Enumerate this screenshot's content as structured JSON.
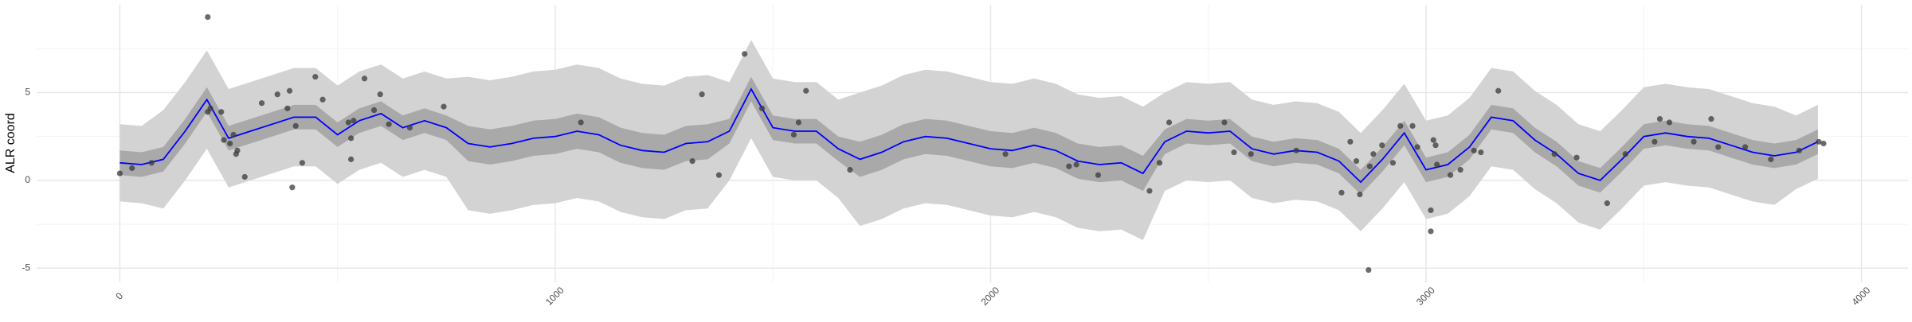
{
  "chart_data": {
    "type": "gp_fit",
    "y_label": "ALR coord",
    "xlim": [
      -191,
      4107
    ],
    "ylim": [
      -5.8,
      10
    ],
    "xticks": [
      0,
      1000,
      2000,
      3000,
      4000
    ],
    "yticks": [
      -5,
      0,
      5
    ],
    "xminor": [
      500,
      1500,
      2500,
      3500
    ],
    "yminor": [
      -2.5,
      2.5,
      7.5
    ],
    "grid": true,
    "x": [
      0,
      50,
      100,
      150,
      200,
      250,
      300,
      350,
      400,
      450,
      500,
      550,
      600,
      650,
      700,
      750,
      800,
      850,
      900,
      950,
      1000,
      1050,
      1100,
      1150,
      1200,
      1250,
      1300,
      1350,
      1400,
      1450,
      1500,
      1550,
      1600,
      1650,
      1700,
      1750,
      1800,
      1850,
      1900,
      1950,
      2000,
      2050,
      2100,
      2150,
      2200,
      2250,
      2300,
      2350,
      2400,
      2450,
      2500,
      2550,
      2600,
      2650,
      2700,
      2750,
      2800,
      2850,
      2900,
      2950,
      3000,
      3050,
      3100,
      3150,
      3200,
      3250,
      3300,
      3350,
      3400,
      3450,
      3500,
      3550,
      3600,
      3650,
      3700,
      3750,
      3800,
      3850,
      3900
    ],
    "bands": [
      {
        "color": "#d3d3d3",
        "lower": [
          -1.2,
          -1.3,
          -1.6,
          0.0,
          1.8,
          -0.4,
          0.0,
          0.4,
          0.8,
          0.8,
          -0.2,
          0.6,
          1.0,
          0.2,
          0.6,
          0.2,
          -1.7,
          -1.9,
          -1.7,
          -1.4,
          -1.3,
          -1.0,
          -1.2,
          -1.8,
          -2.1,
          -2.2,
          -1.7,
          -1.6,
          0.0,
          2.4,
          0.2,
          0.0,
          0.0,
          -1.0,
          -2.6,
          -2.2,
          -1.6,
          -1.3,
          -1.4,
          -1.7,
          -2.0,
          -2.1,
          -1.8,
          -2.1,
          -2.7,
          -2.9,
          -2.8,
          -3.4,
          -0.6,
          0.0,
          -0.1,
          0.0,
          -1.0,
          -1.3,
          -1.1,
          -1.2,
          -1.7,
          -2.9,
          -1.6,
          -0.1,
          -2.2,
          -1.9,
          -0.9,
          0.8,
          0.6,
          -0.5,
          -1.3,
          -2.4,
          -2.8,
          -1.6,
          -0.3,
          -0.1,
          -0.3,
          -0.4,
          -0.8,
          -1.2,
          -1.4,
          -0.5,
          0.1
        ],
        "upper": [
          3.2,
          3.1,
          4.0,
          5.6,
          7.4,
          5.2,
          5.6,
          6.0,
          6.4,
          6.4,
          5.4,
          6.2,
          6.6,
          5.8,
          6.2,
          5.8,
          5.9,
          5.7,
          5.9,
          6.2,
          6.3,
          6.6,
          6.4,
          5.8,
          5.5,
          5.4,
          5.9,
          6.0,
          5.6,
          8.0,
          5.8,
          5.6,
          5.6,
          4.6,
          5.0,
          5.4,
          6.0,
          6.3,
          6.2,
          5.9,
          5.6,
          5.5,
          5.8,
          5.5,
          4.9,
          4.7,
          4.8,
          4.2,
          5.0,
          5.6,
          5.5,
          5.6,
          4.6,
          4.3,
          4.5,
          4.4,
          3.9,
          2.7,
          4.0,
          5.5,
          3.4,
          3.7,
          4.7,
          6.4,
          6.2,
          5.1,
          4.3,
          3.2,
          2.8,
          4.0,
          5.3,
          5.5,
          5.3,
          5.2,
          4.8,
          4.4,
          4.2,
          3.7,
          4.3
        ]
      },
      {
        "color": "#a9a9a9",
        "lower": [
          0.3,
          0.2,
          0.5,
          2.1,
          3.9,
          1.7,
          2.1,
          2.5,
          2.9,
          2.9,
          1.9,
          2.7,
          3.1,
          2.3,
          2.7,
          2.3,
          1.1,
          0.9,
          1.1,
          1.4,
          1.5,
          1.8,
          1.6,
          1.0,
          0.7,
          0.6,
          1.1,
          1.2,
          2.1,
          4.5,
          2.3,
          2.1,
          2.1,
          1.1,
          0.2,
          0.6,
          1.2,
          1.5,
          1.4,
          1.1,
          0.8,
          0.7,
          1.0,
          0.7,
          0.1,
          -0.1,
          0.0,
          -0.6,
          1.5,
          2.1,
          2.0,
          2.1,
          1.1,
          0.8,
          1.0,
          0.9,
          0.4,
          -0.8,
          0.5,
          2.0,
          -0.1,
          0.2,
          1.2,
          2.9,
          2.7,
          1.6,
          0.8,
          -0.3,
          -0.7,
          0.5,
          1.8,
          2.0,
          1.8,
          1.7,
          1.3,
          0.9,
          0.7,
          0.9,
          1.5
        ],
        "upper": [
          1.7,
          1.6,
          1.9,
          3.5,
          5.3,
          3.1,
          3.5,
          3.9,
          4.3,
          4.3,
          3.3,
          4.1,
          4.5,
          3.7,
          4.1,
          3.7,
          3.1,
          2.9,
          3.1,
          3.4,
          3.5,
          3.8,
          3.6,
          3.0,
          2.7,
          2.6,
          3.1,
          3.2,
          3.5,
          5.9,
          3.7,
          3.5,
          3.5,
          2.5,
          2.2,
          2.6,
          3.2,
          3.5,
          3.4,
          3.1,
          2.8,
          2.7,
          3.0,
          2.7,
          2.1,
          1.9,
          2.0,
          1.4,
          2.9,
          3.5,
          3.4,
          3.5,
          2.5,
          2.2,
          2.4,
          2.3,
          1.8,
          0.6,
          1.9,
          3.4,
          1.3,
          1.6,
          2.6,
          4.3,
          4.1,
          3.0,
          2.2,
          1.1,
          0.7,
          1.9,
          3.2,
          3.4,
          3.2,
          3.1,
          2.7,
          2.3,
          2.1,
          2.3,
          2.9
        ]
      }
    ],
    "line": {
      "color": "#0000ff",
      "values": [
        1.0,
        0.9,
        1.2,
        2.8,
        4.6,
        2.4,
        2.8,
        3.2,
        3.6,
        3.6,
        2.6,
        3.4,
        3.8,
        3.0,
        3.4,
        3.0,
        2.1,
        1.9,
        2.1,
        2.4,
        2.5,
        2.8,
        2.6,
        2.0,
        1.7,
        1.6,
        2.1,
        2.2,
        2.8,
        5.2,
        3.0,
        2.8,
        2.8,
        1.8,
        1.2,
        1.6,
        2.2,
        2.5,
        2.4,
        2.1,
        1.8,
        1.7,
        2.0,
        1.7,
        1.1,
        0.9,
        1.0,
        0.4,
        2.2,
        2.8,
        2.7,
        2.8,
        1.8,
        1.5,
        1.7,
        1.6,
        1.1,
        -0.1,
        1.2,
        2.7,
        0.6,
        0.9,
        1.9,
        3.6,
        3.4,
        2.3,
        1.5,
        0.4,
        0.0,
        1.2,
        2.5,
        2.7,
        2.5,
        2.4,
        2.0,
        1.6,
        1.4,
        1.6,
        2.2
      ]
    },
    "points": {
      "color": "#3a3a3a",
      "x": [
        0,
        28,
        73,
        202,
        202,
        208,
        233,
        239,
        253,
        261,
        267,
        270,
        287,
        326,
        362,
        385,
        390,
        396,
        404,
        419,
        449,
        466,
        525,
        531,
        531,
        537,
        562,
        584,
        598,
        618,
        666,
        744,
        1059,
        1315,
        1337,
        1376,
        1435,
        1475,
        1548,
        1559,
        1576,
        1677,
        2034,
        2180,
        2197,
        2247,
        2365,
        2388,
        2410,
        2537,
        2559,
        2598,
        2702,
        2806,
        2826,
        2840,
        2848,
        2868,
        2871,
        2879,
        2899,
        2924,
        2941,
        2969,
        2980,
        3011,
        3011,
        3017,
        3022,
        3025,
        3056,
        3079,
        3110,
        3126,
        3166,
        3295,
        3346,
        3416,
        3458,
        3525,
        3537,
        3559,
        3615,
        3655,
        3671,
        3733,
        3792,
        3857,
        3902,
        3913
      ],
      "values": [
        0.4,
        0.7,
        1.0,
        9.3,
        3.9,
        4.1,
        3.9,
        2.3,
        2.1,
        2.6,
        1.5,
        1.7,
        0.2,
        4.4,
        4.9,
        4.1,
        5.1,
        -0.4,
        3.1,
        1.0,
        5.9,
        4.6,
        3.3,
        2.4,
        1.2,
        3.4,
        5.8,
        4.0,
        4.9,
        3.2,
        3.0,
        4.2,
        3.3,
        1.1,
        4.9,
        0.3,
        7.2,
        4.1,
        2.6,
        3.3,
        5.1,
        0.6,
        1.5,
        0.8,
        0.9,
        0.3,
        -0.6,
        1.0,
        3.3,
        3.3,
        1.6,
        1.5,
        1.7,
        -0.7,
        2.2,
        1.1,
        -0.8,
        -5.1,
        0.8,
        1.5,
        2.0,
        1.0,
        3.1,
        3.1,
        1.9,
        -1.7,
        -2.9,
        2.3,
        2.0,
        0.9,
        0.3,
        0.6,
        1.7,
        1.6,
        5.1,
        1.5,
        1.3,
        -1.3,
        1.5,
        2.2,
        3.5,
        3.3,
        2.2,
        3.5,
        1.9,
        1.9,
        1.2,
        1.7,
        2.2,
        2.1
      ]
    }
  }
}
